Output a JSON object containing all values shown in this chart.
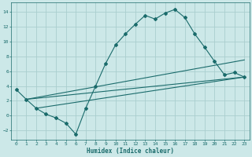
{
  "xlabel": "Humidex (Indice chaleur)",
  "bg_color": "#cce8e8",
  "grid_color": "#aacece",
  "line_color": "#1a6b6b",
  "xlim": [
    -0.5,
    23.5
  ],
  "ylim": [
    -3.2,
    15.2
  ],
  "xticks": [
    0,
    1,
    2,
    3,
    4,
    5,
    6,
    7,
    8,
    9,
    10,
    11,
    12,
    13,
    14,
    15,
    16,
    17,
    18,
    19,
    20,
    21,
    22,
    23
  ],
  "yticks": [
    -2,
    0,
    2,
    4,
    6,
    8,
    10,
    12,
    14
  ],
  "curve1_x": [
    0,
    1,
    2,
    3,
    4,
    5,
    6,
    7,
    8,
    9,
    10,
    11,
    12,
    13,
    14,
    15,
    16,
    17,
    18,
    19,
    20,
    21,
    22,
    23
  ],
  "curve1_y": [
    3.5,
    2.2,
    1.0,
    0.2,
    -0.3,
    -1.0,
    -2.5,
    1.0,
    4.0,
    7.0,
    9.5,
    11.0,
    12.3,
    13.5,
    13.0,
    13.8,
    14.3,
    13.2,
    11.0,
    9.2,
    7.3,
    5.5,
    5.8,
    5.2
  ],
  "line1_x": [
    1,
    23
  ],
  "line1_y": [
    2.2,
    5.2
  ],
  "line2_x": [
    1,
    23
  ],
  "line2_y": [
    2.2,
    7.5
  ],
  "line3_x": [
    2,
    23
  ],
  "line3_y": [
    1.0,
    5.2
  ]
}
